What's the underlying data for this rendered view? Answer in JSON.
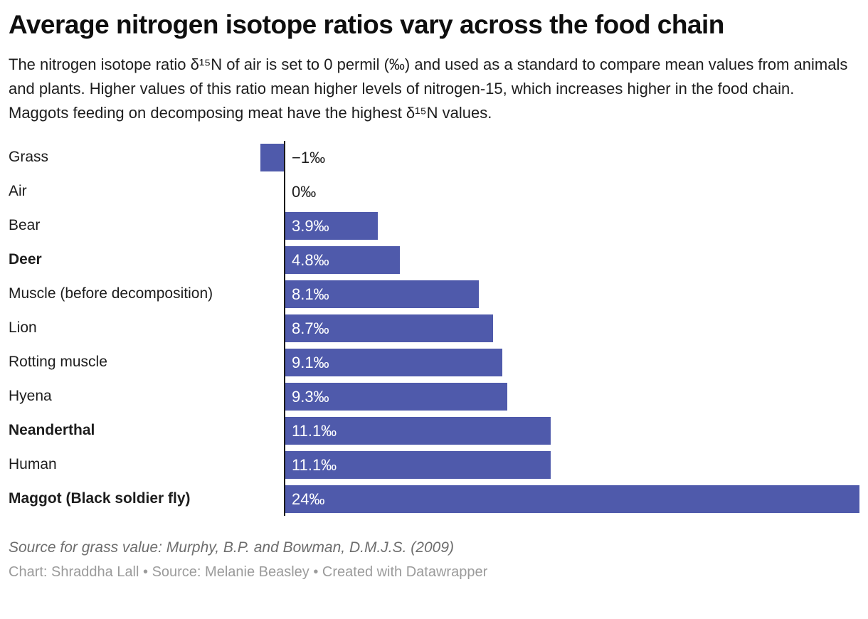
{
  "header": {
    "title": "Average nitrogen isotope ratios vary across the food chain",
    "description": "The nitrogen isotope ratio δ¹⁵N of air is set to 0 permil (‰) and used as a standard to compare mean values from animals and plants. Higher values of this ratio mean higher levels of nitrogen-15, which increases higher in the food chain. Maggots feeding on decomposing meat have the highest δ¹⁵N values."
  },
  "chart_data": {
    "type": "bar",
    "orientation": "horizontal",
    "title": "Average nitrogen isotope ratios vary across the food chain",
    "unit": "‰",
    "xlim": [
      -1,
      24
    ],
    "grid": false,
    "legend": false,
    "bar_color": "#4f5aab",
    "axis_color": "#1a1a1a",
    "categories": [
      "Grass",
      "Air",
      "Bear",
      "Deer",
      "Muscle (before decomposition)",
      "Lion",
      "Rotting muscle",
      "Hyena",
      "Neanderthal",
      "Human",
      "Maggot (Black soldier fly)"
    ],
    "values": [
      -1,
      0,
      3.9,
      4.8,
      8.1,
      8.7,
      9.1,
      9.3,
      11.1,
      11.1,
      24
    ],
    "value_labels": [
      "−1‰",
      "0‰",
      "3.9‰",
      "4.8‰",
      "8.1‰",
      "8.7‰",
      "9.1‰",
      "9.3‰",
      "11.1‰",
      "11.1‰",
      "24‰"
    ],
    "bold_flags": [
      false,
      false,
      false,
      true,
      false,
      false,
      false,
      false,
      true,
      false,
      true
    ]
  },
  "footer": {
    "source_note": "Source for grass value: Murphy, B.P. and Bowman, D.M.J.S. (2009)",
    "byline": "Chart: Shraddha Lall • Source: Melanie Beasley • Created with Datawrapper"
  }
}
